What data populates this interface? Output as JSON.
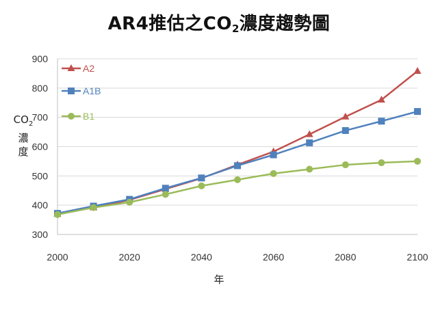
{
  "chart_data": {
    "type": "line",
    "title_main": "AR4推估之CO",
    "title_sub": "2",
    "title_tail": "濃度趨勢圖",
    "ylabel_main": "CO",
    "ylabel_sub": "2",
    "ylabel_tail_1": "濃",
    "ylabel_tail_2": "度",
    "xlabel": "年",
    "xlim": [
      2000,
      2100
    ],
    "ylim": [
      300,
      900
    ],
    "xticks": [
      2000,
      2020,
      2040,
      2060,
      2080,
      2100
    ],
    "yticks": [
      300,
      400,
      500,
      600,
      700,
      800,
      900
    ],
    "grid": "horizontal",
    "legend_position": "top-left",
    "x": [
      2000,
      2010,
      2020,
      2030,
      2040,
      2050,
      2060,
      2070,
      2080,
      2090,
      2100
    ],
    "series": [
      {
        "name": "A2",
        "color": "#c0504d",
        "marker": "triangle",
        "values": [
          370,
          392,
          418,
          455,
          492,
          538,
          583,
          642,
          702,
          760,
          858
        ]
      },
      {
        "name": "A1B",
        "color": "#4f81bd",
        "marker": "square",
        "values": [
          372,
          397,
          420,
          458,
          493,
          535,
          572,
          613,
          655,
          687,
          720
        ]
      },
      {
        "name": "B1",
        "color": "#9bbb59",
        "marker": "circle",
        "values": [
          368,
          392,
          410,
          437,
          466,
          487,
          508,
          523,
          538,
          545,
          550
        ]
      }
    ]
  }
}
